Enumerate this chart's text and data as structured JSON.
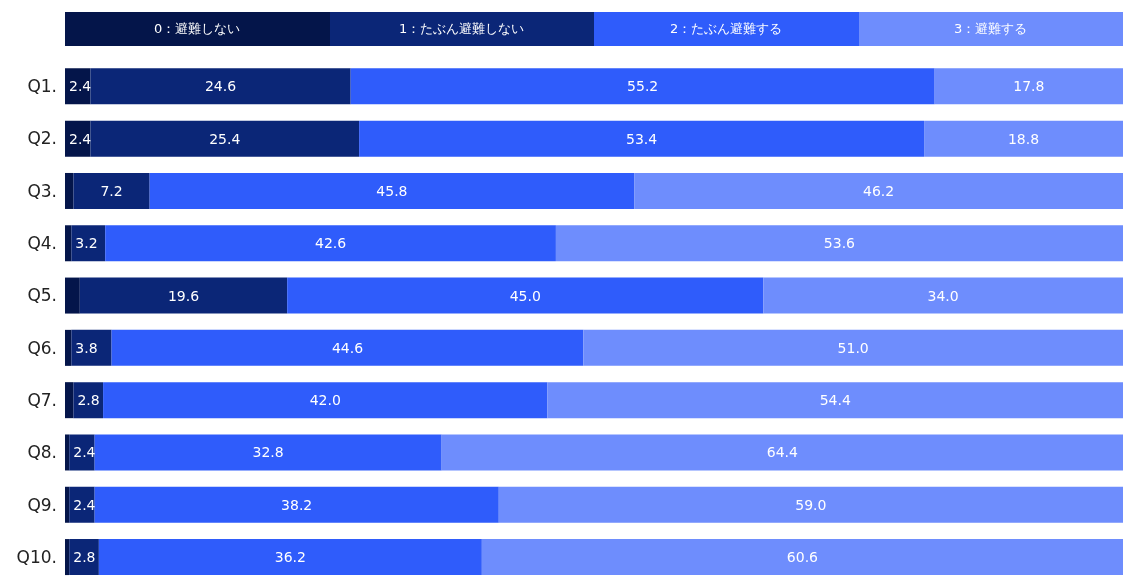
{
  "chart_data": {
    "type": "bar",
    "orientation": "horizontal",
    "stacked": true,
    "legend": "top",
    "grid": false,
    "tick_labels": "y",
    "categories": [
      "Q1.",
      "Q2.",
      "Q3.",
      "Q4.",
      "Q5.",
      "Q6.",
      "Q7.",
      "Q8.",
      "Q9.",
      "Q10."
    ],
    "xlim": [
      0,
      100
    ],
    "series": [
      {
        "name": "0：避難しない",
        "color": "#04154a",
        "values": [
          2.4,
          2.4,
          0.8,
          0.6,
          1.4,
          0.6,
          0.8,
          0.4,
          0.4,
          0.4
        ],
        "value_labels": [
          "2.4",
          "2.4",
          null,
          null,
          null,
          null,
          null,
          null,
          null,
          null
        ]
      },
      {
        "name": "1：たぶん避難しない",
        "color": "#0b2677",
        "values": [
          24.6,
          25.4,
          7.2,
          3.2,
          19.6,
          3.8,
          2.8,
          2.4,
          2.4,
          2.8
        ],
        "value_labels": [
          "24.6",
          "25.4",
          "7.2",
          "3.2",
          "19.6",
          "3.8",
          "2.8",
          "2.4",
          "2.4",
          "2.8"
        ]
      },
      {
        "name": "2：たぶん避難する",
        "color": "#2f5cfb",
        "values": [
          55.2,
          53.4,
          45.8,
          42.6,
          45.0,
          44.6,
          42.0,
          32.8,
          38.2,
          36.2
        ],
        "value_labels": [
          "55.2",
          "53.4",
          "45.8",
          "42.6",
          "45.0",
          "44.6",
          "42.0",
          "32.8",
          "38.2",
          "36.2"
        ]
      },
      {
        "name": "3：避難する",
        "color": "#6e8dfd",
        "values": [
          17.8,
          18.8,
          46.2,
          53.6,
          34.0,
          51.0,
          54.4,
          64.4,
          59.0,
          60.6
        ],
        "value_labels": [
          "17.8",
          "18.8",
          "46.2",
          "53.6",
          "34.0",
          "51.0",
          "54.4",
          "64.4",
          "59.0",
          "60.6"
        ]
      }
    ]
  }
}
